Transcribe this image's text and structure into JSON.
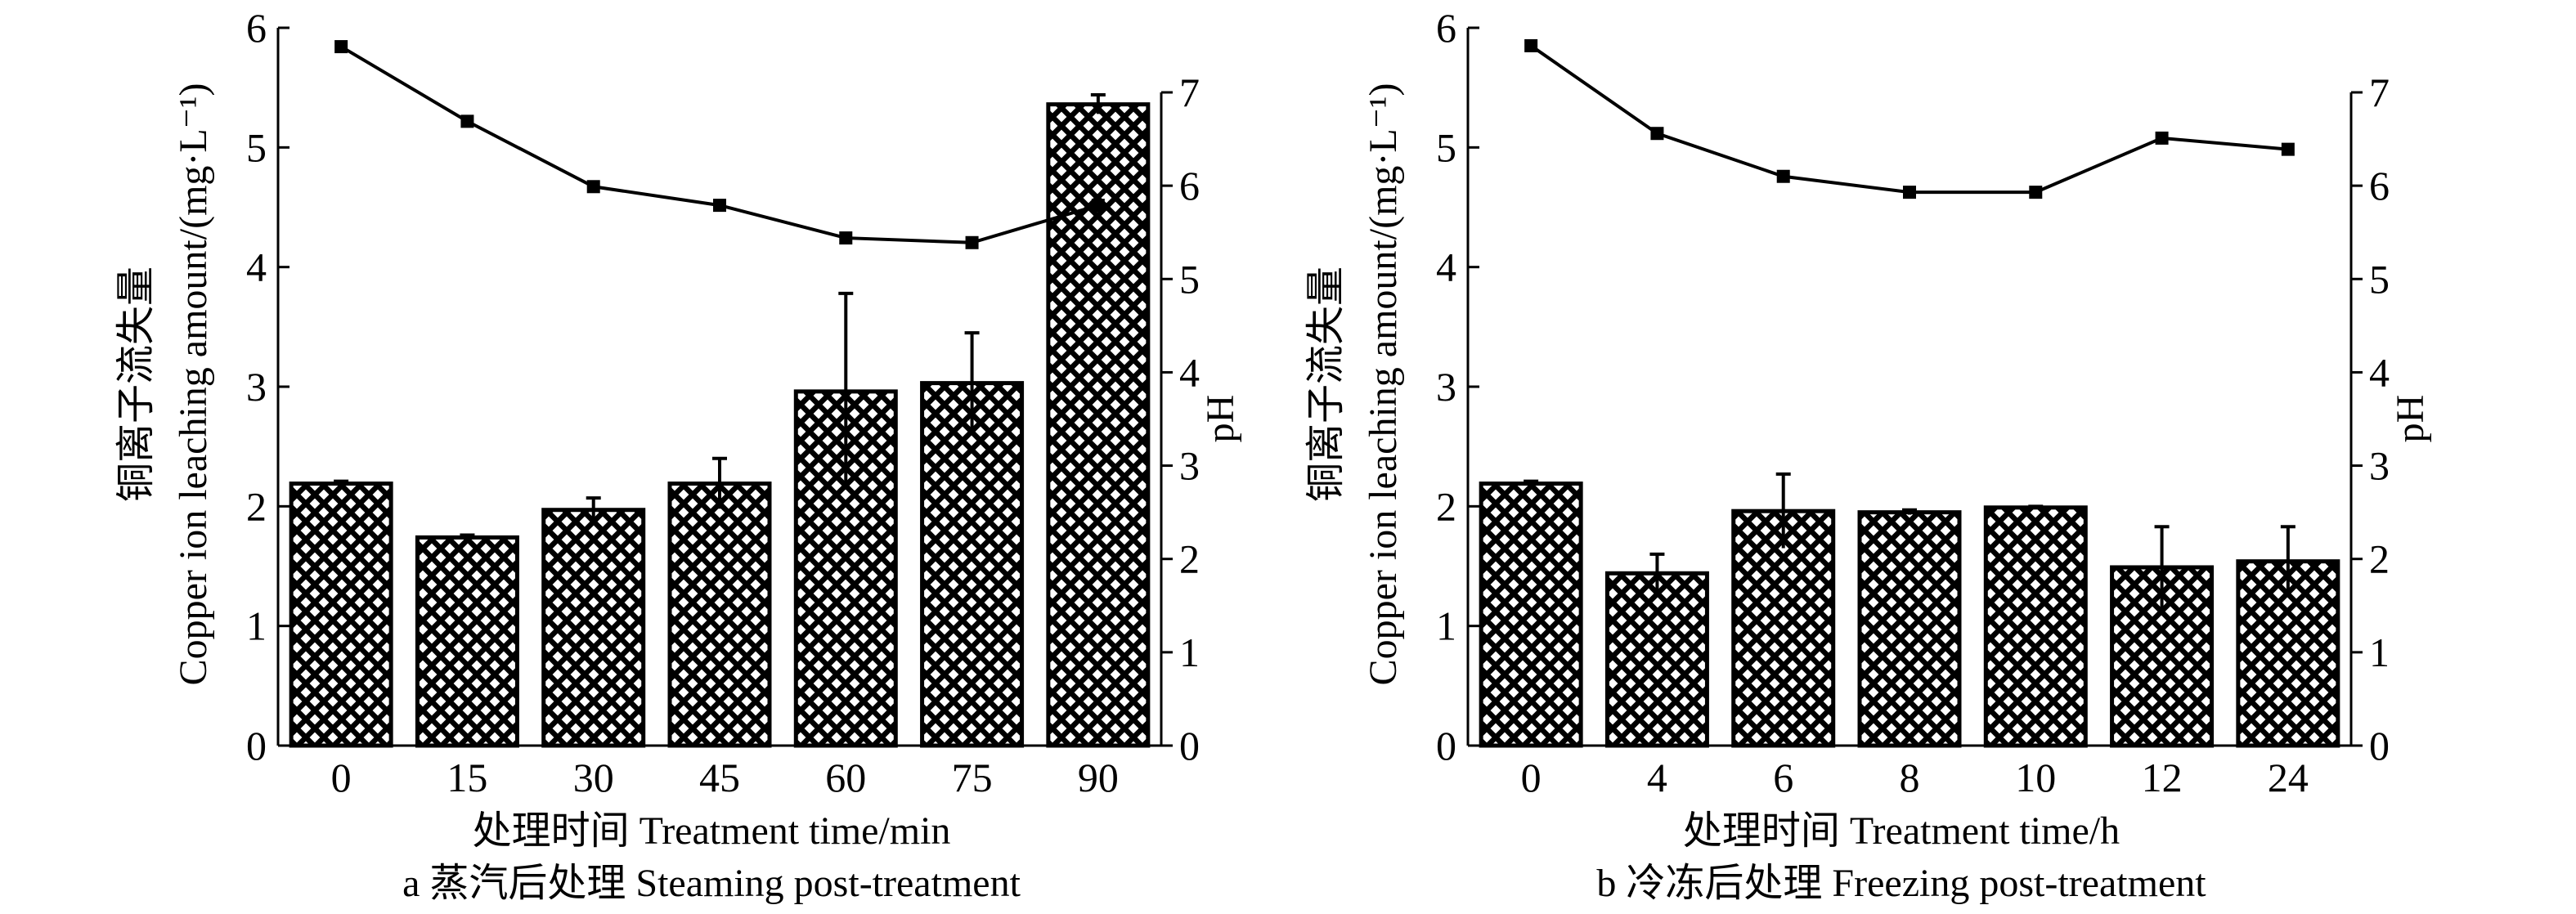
{
  "chart_data": [
    {
      "type": "bar",
      "panel": "a",
      "caption": "a 蒸汽后处理 Steaming post-treatment",
      "xlabel": "处理时间 Treatment time/min",
      "ylabel_cn": "铜离子流失量",
      "ylabel": "Copper ion leaching amount/(mg·L⁻¹)",
      "y2label": "pH",
      "categories": [
        "0",
        "15",
        "30",
        "45",
        "60",
        "75",
        "90"
      ],
      "ylim": [
        0,
        6
      ],
      "yticks": [
        "0",
        "1",
        "2",
        "3",
        "4",
        "5",
        "6"
      ],
      "y2lim": [
        0,
        7
      ],
      "y2ticks": [
        "0",
        "1",
        "2",
        "3",
        "4",
        "5",
        "6",
        "7"
      ],
      "series": [
        {
          "name": "Copper ion leaching amount",
          "type": "bar",
          "axis": "left",
          "values": [
            2.19,
            1.74,
            1.97,
            2.19,
            2.96,
            3.03,
            5.36
          ],
          "errors": [
            0.02,
            0.02,
            0.1,
            0.21,
            0.82,
            0.42,
            0.08
          ]
        },
        {
          "name": "pH",
          "type": "line",
          "axis": "right",
          "values": [
            7.49,
            6.69,
            5.99,
            5.79,
            5.44,
            5.39,
            5.79
          ]
        }
      ]
    },
    {
      "type": "bar",
      "panel": "b",
      "caption": "b 冷冻后处理 Freezing post-treatment",
      "xlabel": "处理时间 Treatment time/h",
      "ylabel_cn": "铜离子流失量",
      "ylabel": "Copper ion leaching amount/(mg·L⁻¹)",
      "y2label": "pH",
      "categories": [
        "0",
        "4",
        "6",
        "8",
        "10",
        "12",
        "24"
      ],
      "ylim": [
        0,
        6
      ],
      "yticks": [
        "0",
        "1",
        "2",
        "3",
        "4",
        "5",
        "6"
      ],
      "y2lim": [
        0,
        7
      ],
      "y2ticks": [
        "0",
        "1",
        "2",
        "3",
        "4",
        "5",
        "6",
        "7"
      ],
      "series": [
        {
          "name": "Copper ion leaching amount",
          "type": "bar",
          "axis": "left",
          "values": [
            2.19,
            1.44,
            1.96,
            1.95,
            1.99,
            1.49,
            1.54
          ],
          "errors": [
            0.02,
            0.16,
            0.31,
            0.02,
            0.01,
            0.34,
            0.29
          ]
        },
        {
          "name": "pH",
          "type": "line",
          "axis": "right",
          "values": [
            7.5,
            6.56,
            6.1,
            5.93,
            5.93,
            6.51,
            6.39
          ]
        }
      ]
    }
  ]
}
